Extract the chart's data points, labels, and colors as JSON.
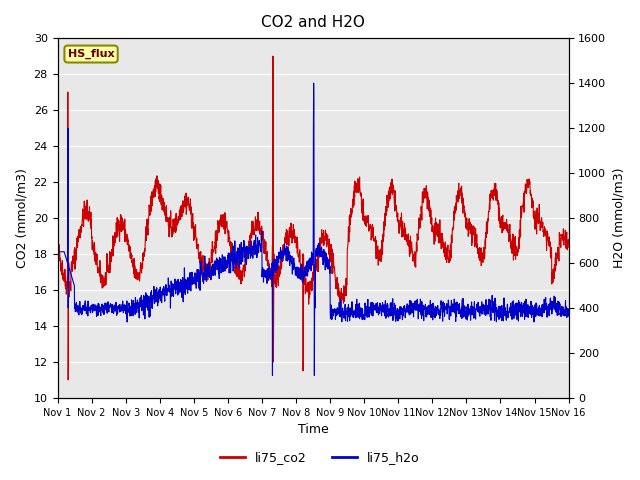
{
  "title": "CO2 and H2O",
  "xlabel": "Time",
  "ylabel_left": "CO2 (mmol/m3)",
  "ylabel_right": "H2O (mmol/m3)",
  "ylim_left": [
    10,
    30
  ],
  "ylim_right": [
    0,
    1600
  ],
  "yticks_left": [
    10,
    12,
    14,
    16,
    18,
    20,
    22,
    24,
    26,
    28,
    30
  ],
  "yticks_right": [
    0,
    200,
    400,
    600,
    800,
    1000,
    1200,
    1400,
    1600
  ],
  "xtick_labels": [
    "Nov 1",
    "Nov 2",
    "Nov 3",
    "Nov 4",
    "Nov 5",
    "Nov 6",
    "Nov 7",
    "Nov 8",
    "Nov 9",
    "Nov 10",
    "Nov 11",
    "Nov 12",
    "Nov 13",
    "Nov 14",
    "Nov 15",
    "Nov 16"
  ],
  "co2_color": "#cc0000",
  "h2o_color": "#0000cc",
  "bg_color": "#e8e8e8",
  "label_box_text": "HS_flux",
  "label_box_bg": "#ffffaa",
  "label_box_edge": "#888800",
  "legend_co2": "li75_co2",
  "legend_h2o": "li75_h2o",
  "line_width": 0.8
}
